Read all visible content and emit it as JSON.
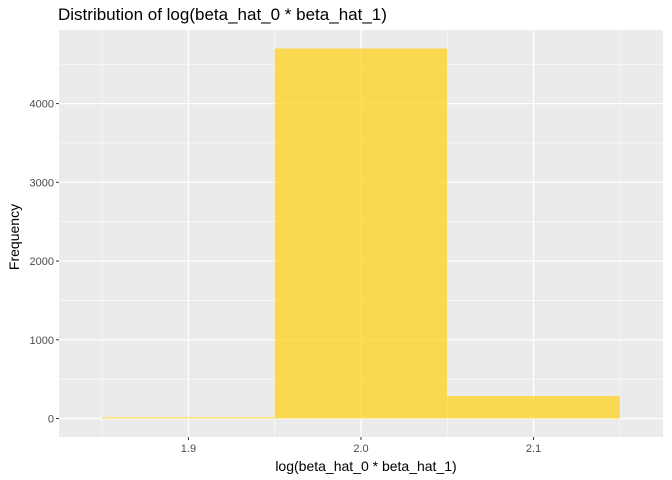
{
  "chart_data": {
    "type": "bar",
    "title": "Distribution of log(beta_hat_0 * beta_hat_1)",
    "xlabel": "log(beta_hat_0 * beta_hat_1)",
    "ylabel": "Frequency",
    "bins": [
      {
        "x0": 1.85,
        "x1": 1.95,
        "count": 15
      },
      {
        "x0": 1.95,
        "x1": 2.05,
        "count": 4700
      },
      {
        "x0": 2.05,
        "x1": 2.15,
        "count": 285
      }
    ],
    "xlim": [
      1.825,
      2.175
    ],
    "ylim": [
      -235,
      4935
    ],
    "x_ticks": [
      1.9,
      2.0,
      2.1
    ],
    "x_tick_labels": [
      "1.9",
      "2.0",
      "2.1"
    ],
    "y_ticks": [
      0,
      1000,
      2000,
      3000,
      4000
    ],
    "y_tick_labels": [
      "0",
      "1000",
      "2000",
      "3000",
      "4000"
    ],
    "grid": true,
    "fill_color": "#FFD21F",
    "panel_color": "#EBEBEB"
  }
}
